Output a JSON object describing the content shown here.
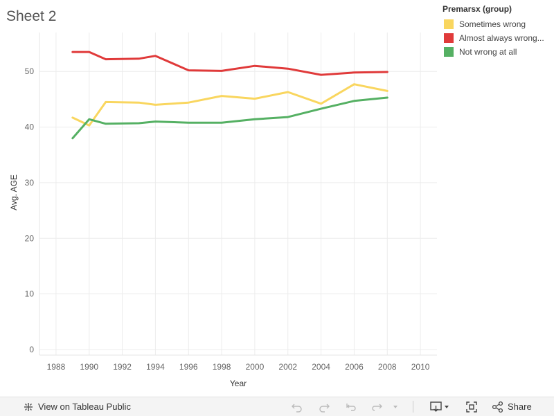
{
  "sheet_title": "Sheet 2",
  "legend": {
    "title": "Premarsx (group)",
    "items": [
      {
        "label": "Sometimes wrong",
        "color": "#f9d65f"
      },
      {
        "label": "Almost always wrong...",
        "color": "#e03a3a"
      },
      {
        "label": "Not wrong at all",
        "color": "#55b063"
      }
    ]
  },
  "toolbar": {
    "view_label": "View on Tableau Public",
    "share_label": "Share"
  },
  "chart_data": {
    "type": "line",
    "xlabel": "Year",
    "ylabel": "Avg. AGE",
    "xlim": [
      1987,
      2011
    ],
    "ylim": [
      -1,
      57
    ],
    "x_ticks": [
      1988,
      1990,
      1992,
      1994,
      1996,
      1998,
      2000,
      2002,
      2004,
      2006,
      2008,
      2010
    ],
    "y_ticks": [
      0,
      10,
      20,
      30,
      40,
      50
    ],
    "grid": true,
    "legend_position": "top-right",
    "x": [
      1989,
      1990,
      1991,
      1993,
      1994,
      1996,
      1998,
      2000,
      2002,
      2004,
      2006,
      2008
    ],
    "series": [
      {
        "name": "Sometimes wrong",
        "color": "#f9d65f",
        "values": [
          41.7,
          40.3,
          44.5,
          44.4,
          44.0,
          44.4,
          45.6,
          45.1,
          46.3,
          44.2,
          47.7,
          46.5
        ]
      },
      {
        "name": "Almost always wrong...",
        "color": "#e03a3a",
        "values": [
          53.5,
          53.5,
          52.2,
          52.3,
          52.8,
          50.2,
          50.1,
          51.0,
          50.5,
          49.4,
          49.8,
          49.9
        ]
      },
      {
        "name": "Not wrong at all",
        "color": "#55b063",
        "values": [
          38.0,
          41.4,
          40.6,
          40.7,
          41.0,
          40.8,
          40.8,
          41.4,
          41.8,
          43.3,
          44.7,
          45.3
        ]
      }
    ]
  }
}
